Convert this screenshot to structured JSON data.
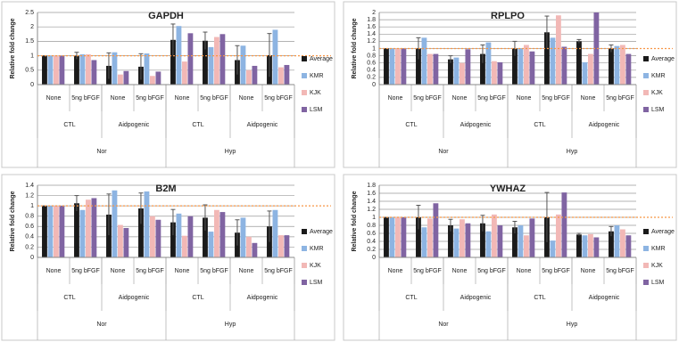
{
  "chart_data": [
    {
      "type": "bar",
      "title": "GAPDH",
      "y_label": "Relative fold change",
      "categories": [
        "None",
        "5ng bFGF",
        "None",
        "5ng bFGF",
        "None",
        "5ng bFGF",
        "None",
        "5ng bFGF"
      ],
      "subgroups": [
        "CTL",
        "Aidpogenic",
        "CTL",
        "Aidpogenic"
      ],
      "groups": [
        "Nor",
        "Hyp"
      ],
      "series": [
        {
          "name": "Average",
          "color": "#1a1a1a",
          "values": [
            1,
            1.0,
            0.65,
            0.62,
            1.55,
            1.52,
            0.85,
            1.02
          ],
          "error": [
            0,
            0.12,
            0.45,
            0.45,
            0.55,
            0.3,
            0.5,
            0.75
          ]
        },
        {
          "name": "KMR",
          "color": "#8db4e2",
          "values": [
            1,
            1.05,
            1.12,
            1.08,
            2.03,
            1.3,
            1.35,
            1.9
          ]
        },
        {
          "name": "KJK",
          "color": "#f2b8b6",
          "values": [
            1,
            1.05,
            0.35,
            0.3,
            0.8,
            1.65,
            0.5,
            0.6
          ]
        },
        {
          "name": "LSM",
          "color": "#8064a2",
          "values": [
            1,
            0.85,
            0.47,
            0.45,
            1.78,
            1.75,
            0.65,
            0.68
          ]
        }
      ],
      "ylim": [
        0,
        2.5
      ],
      "yticks": [
        0,
        0.5,
        1,
        1.5,
        2,
        2.5
      ],
      "grid": true,
      "legend": "right",
      "reference_line": 1,
      "reference_color": "#f79646"
    },
    {
      "type": "bar",
      "title": "RPLPO",
      "y_label": "Relative fold change",
      "categories": [
        "None",
        "5ng bFGF",
        "None",
        "5ng bFGF",
        "None",
        "5ng bFGF",
        "None",
        "5ng bFGF"
      ],
      "subgroups": [
        "CTL",
        "Aidpogenic",
        "CTL",
        "Aidpogenic"
      ],
      "groups": [
        "Nor",
        "Hyp"
      ],
      "series": [
        {
          "name": "Average",
          "color": "#1a1a1a",
          "values": [
            1,
            1.0,
            0.7,
            0.85,
            1.0,
            1.45,
            1.2,
            1.0
          ],
          "error": [
            0,
            0.3,
            0.1,
            0.25,
            0.2,
            0.45,
            0.05,
            0.1
          ]
        },
        {
          "name": "KMR",
          "color": "#8db4e2",
          "values": [
            1,
            1.3,
            0.75,
            1.17,
            1.0,
            1.3,
            0.62,
            1.07
          ]
        },
        {
          "name": "KJK",
          "color": "#f2b8b6",
          "values": [
            1,
            0.85,
            0.6,
            0.65,
            1.1,
            1.92,
            0.85,
            1.1
          ]
        },
        {
          "name": "LSM",
          "color": "#8064a2",
          "values": [
            1,
            0.85,
            0.98,
            0.62,
            0.92,
            1.05,
            2.0,
            0.85
          ]
        }
      ],
      "ylim": [
        0,
        2
      ],
      "yticks": [
        0,
        0.2,
        0.4,
        0.6,
        0.8,
        1,
        1.2,
        1.4,
        1.6,
        1.8,
        2
      ],
      "grid": true,
      "legend": "right",
      "reference_line": 1,
      "reference_color": "#f79646"
    },
    {
      "type": "bar",
      "title": "B2M",
      "y_label": "Relative fold change",
      "categories": [
        "None",
        "5ng bFGF",
        "None",
        "5ng bFGF",
        "None",
        "5ng bFGF",
        "None",
        "5ng bFGF"
      ],
      "subgroups": [
        "CTL",
        "Aidpogenic",
        "CTL",
        "Aidpogenic"
      ],
      "groups": [
        "Nor",
        "Hyp"
      ],
      "series": [
        {
          "name": "Average",
          "color": "#1a1a1a",
          "values": [
            1,
            1.05,
            0.83,
            0.95,
            0.68,
            0.77,
            0.48,
            0.6
          ],
          "error": [
            0,
            0.15,
            0.4,
            0.3,
            0.25,
            0.25,
            0.25,
            0.3
          ]
        },
        {
          "name": "KMR",
          "color": "#8db4e2",
          "values": [
            1,
            0.92,
            1.3,
            1.28,
            0.85,
            0.5,
            0.77,
            0.92
          ]
        },
        {
          "name": "KJK",
          "color": "#f2b8b6",
          "values": [
            1,
            1.12,
            0.63,
            0.8,
            0.42,
            0.92,
            0.4,
            0.43
          ]
        },
        {
          "name": "LSM",
          "color": "#8064a2",
          "values": [
            1,
            1.15,
            0.57,
            0.73,
            0.8,
            0.88,
            0.28,
            0.43
          ]
        }
      ],
      "ylim": [
        0,
        1.4
      ],
      "yticks": [
        0,
        0.2,
        0.4,
        0.6,
        0.8,
        1,
        1.2,
        1.4
      ],
      "grid": true,
      "legend": "right",
      "reference_line": 1,
      "reference_color": "#f79646"
    },
    {
      "type": "bar",
      "title": "YWHAZ",
      "y_label": "Relative fold change",
      "categories": [
        "None",
        "5ng bFGF",
        "None",
        "5ng bFGF",
        "None",
        "5ng bFGF",
        "None",
        "5ng bFGF"
      ],
      "subgroups": [
        "CTL",
        "Aidpogenic",
        "CTL",
        "Aidpogenic"
      ],
      "groups": [
        "Nor",
        "Hyp"
      ],
      "series": [
        {
          "name": "Average",
          "color": "#1a1a1a",
          "values": [
            1,
            1.0,
            0.8,
            0.85,
            0.75,
            1.0,
            0.57,
            0.65
          ],
          "error": [
            0,
            0.3,
            0.15,
            0.2,
            0.15,
            0.62,
            0.03,
            0.12
          ]
        },
        {
          "name": "KMR",
          "color": "#8db4e2",
          "values": [
            1,
            0.75,
            0.72,
            0.65,
            0.8,
            0.42,
            0.55,
            0.8
          ]
        },
        {
          "name": "KJK",
          "color": "#f2b8b6",
          "values": [
            1,
            0.97,
            0.95,
            1.07,
            0.55,
            1.07,
            0.58,
            0.7
          ]
        },
        {
          "name": "LSM",
          "color": "#8064a2",
          "values": [
            1,
            1.35,
            0.85,
            0.8,
            0.97,
            1.62,
            0.5,
            0.55
          ]
        }
      ],
      "ylim": [
        0,
        1.8
      ],
      "yticks": [
        0,
        0.2,
        0.4,
        0.6,
        0.8,
        1,
        1.2,
        1.4,
        1.6,
        1.8
      ],
      "grid": true,
      "legend": "right",
      "reference_line": 1,
      "reference_color": "#f79646"
    }
  ]
}
